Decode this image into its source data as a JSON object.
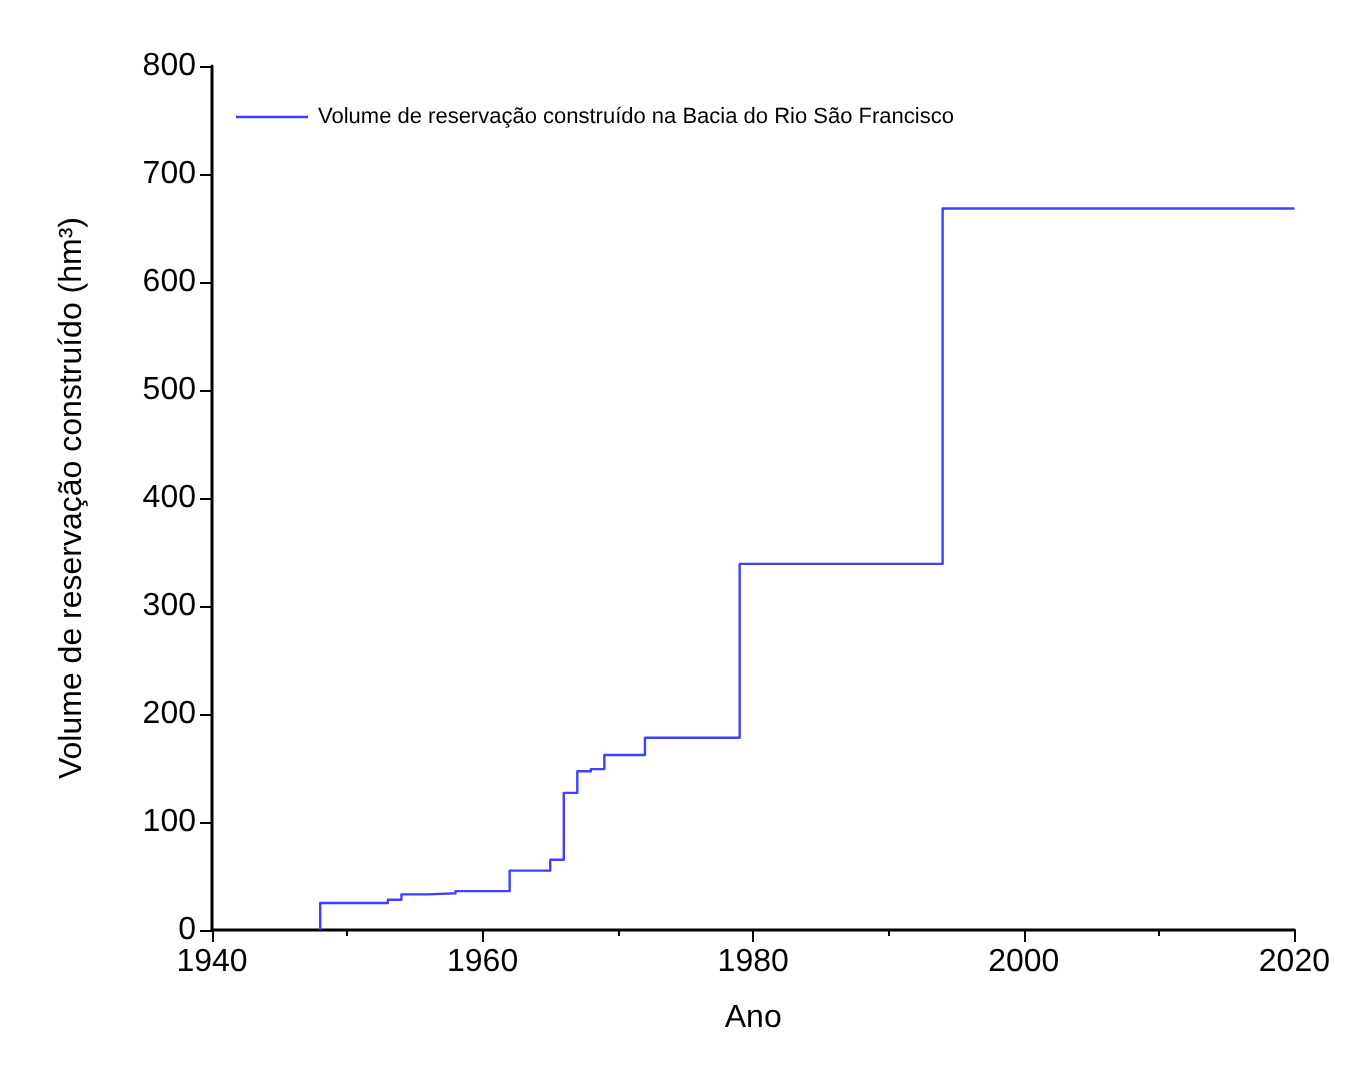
{
  "chart_data": {
    "type": "step",
    "xlabel": "Ano",
    "ylabel": "Volume de reservação construído (hm³)",
    "x": [
      1948,
      1948,
      1953,
      1954,
      1956,
      1958,
      1962,
      1965,
      1966,
      1967,
      1968,
      1969,
      1972,
      1979,
      1994,
      2020
    ],
    "series": [
      {
        "name": "Volume de reservação construído na Bacia do Rio São Francisco",
        "color": "#3f3fff",
        "values": [
          0,
          25,
          28,
          33,
          34,
          36,
          55,
          65,
          127,
          147,
          149,
          162,
          178,
          339,
          668,
          668
        ]
      }
    ],
    "xlim": [
      1940,
      2020
    ],
    "xticks": [
      1940,
      1960,
      1980,
      2000,
      2020
    ],
    "ylim": [
      0,
      800
    ],
    "yticks": [
      0,
      100,
      200,
      300,
      400,
      500,
      600,
      700,
      800
    ],
    "grid": false,
    "legend": "top left"
  }
}
